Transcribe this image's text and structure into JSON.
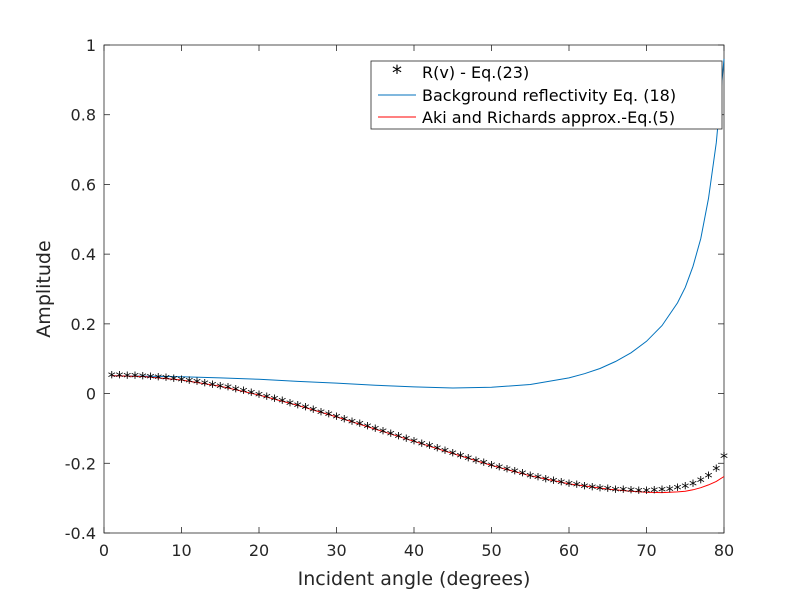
{
  "chart_data": {
    "type": "line",
    "xlabel": "Incident angle (degrees)",
    "ylabel": "Amplitude",
    "xlim": [
      0,
      80
    ],
    "ylim": [
      -0.4,
      1
    ],
    "xticks": [
      0,
      10,
      20,
      30,
      40,
      50,
      60,
      70,
      80
    ],
    "xtick_labels": [
      "0",
      "10",
      "20",
      "30",
      "40",
      "50",
      "60",
      "70",
      "80"
    ],
    "yticks": [
      -0.4,
      -0.2,
      0,
      0.2,
      0.4,
      0.6,
      0.8,
      1
    ],
    "ytick_labels": [
      "-0.4",
      "-0.2",
      "0",
      "0.2",
      "0.4",
      "0.6",
      "0.8",
      "1"
    ],
    "grid": false,
    "legend_position": "top-right",
    "series": [
      {
        "name": "R(v) - Eq.(23)",
        "style": "markers",
        "marker": "*",
        "color": "#000000",
        "x": [
          1,
          2,
          3,
          4,
          5,
          6,
          7,
          8,
          9,
          10,
          11,
          12,
          13,
          14,
          15,
          16,
          17,
          18,
          19,
          20,
          21,
          22,
          23,
          24,
          25,
          26,
          27,
          28,
          29,
          30,
          31,
          32,
          33,
          34,
          35,
          36,
          37,
          38,
          39,
          40,
          41,
          42,
          43,
          44,
          45,
          46,
          47,
          48,
          49,
          50,
          51,
          52,
          53,
          54,
          55,
          56,
          57,
          58,
          59,
          60,
          61,
          62,
          63,
          64,
          65,
          66,
          67,
          68,
          69,
          70,
          71,
          72,
          73,
          74,
          75,
          76,
          77,
          78,
          79,
          80
        ],
        "y": [
          0.052,
          0.052,
          0.051,
          0.05,
          0.049,
          0.048,
          0.046,
          0.044,
          0.042,
          0.039,
          0.036,
          0.033,
          0.029,
          0.025,
          0.021,
          0.017,
          0.012,
          0.007,
          0.002,
          -0.004,
          -0.01,
          -0.016,
          -0.022,
          -0.028,
          -0.034,
          -0.04,
          -0.047,
          -0.054,
          -0.06,
          -0.067,
          -0.074,
          -0.081,
          -0.088,
          -0.095,
          -0.102,
          -0.109,
          -0.116,
          -0.123,
          -0.13,
          -0.137,
          -0.144,
          -0.151,
          -0.158,
          -0.165,
          -0.172,
          -0.179,
          -0.186,
          -0.193,
          -0.199,
          -0.206,
          -0.212,
          -0.218,
          -0.224,
          -0.23,
          -0.236,
          -0.241,
          -0.246,
          -0.251,
          -0.255,
          -0.259,
          -0.263,
          -0.266,
          -0.269,
          -0.272,
          -0.274,
          -0.276,
          -0.277,
          -0.278,
          -0.279,
          -0.279,
          -0.278,
          -0.277,
          -0.275,
          -0.271,
          -0.266,
          -0.259,
          -0.249,
          -0.236,
          -0.217,
          -0.18
        ]
      },
      {
        "name": "Background reflectivity Eq. (18)",
        "style": "line",
        "color": "#0072BD",
        "x": [
          1,
          5,
          10,
          15,
          20,
          25,
          30,
          35,
          40,
          45,
          50,
          55,
          60,
          62,
          64,
          66,
          68,
          70,
          72,
          74,
          75,
          76,
          77,
          78,
          79,
          80
        ],
        "y": [
          0.051,
          0.05,
          0.048,
          0.045,
          0.041,
          0.035,
          0.03,
          0.024,
          0.019,
          0.016,
          0.018,
          0.026,
          0.045,
          0.057,
          0.072,
          0.092,
          0.117,
          0.15,
          0.195,
          0.26,
          0.305,
          0.365,
          0.445,
          0.56,
          0.72,
          0.96
        ]
      },
      {
        "name": "Aki and Richards approx.-Eq.(5)",
        "style": "line",
        "color": "#FF0000",
        "x": [
          1,
          5,
          10,
          15,
          20,
          25,
          30,
          35,
          40,
          45,
          50,
          55,
          60,
          65,
          68,
          70,
          72,
          74,
          75,
          76,
          77,
          78,
          79,
          80
        ],
        "y": [
          0.051,
          0.049,
          0.039,
          0.021,
          -0.004,
          -0.034,
          -0.067,
          -0.102,
          -0.137,
          -0.172,
          -0.206,
          -0.236,
          -0.259,
          -0.274,
          -0.28,
          -0.283,
          -0.284,
          -0.282,
          -0.28,
          -0.276,
          -0.27,
          -0.262,
          -0.252,
          -0.238
        ]
      }
    ]
  }
}
